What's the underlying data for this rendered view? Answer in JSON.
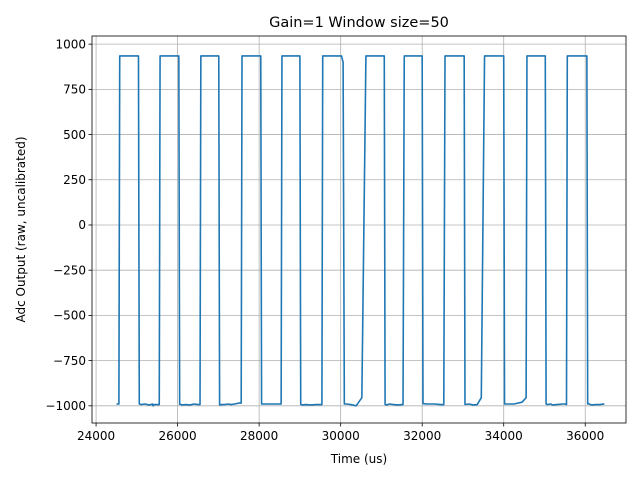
{
  "chart_data": {
    "type": "line",
    "title": "Gain=1 Window size=50",
    "xlabel": "Time (us)",
    "ylabel": "Adc Output (raw, uncalibrated)",
    "xlim": [
      23900,
      37000
    ],
    "ylim": [
      -1095,
      1045
    ],
    "xticks": [
      24000,
      26000,
      28000,
      30000,
      32000,
      34000,
      36000
    ],
    "yticks": [
      -1000,
      -750,
      -500,
      -250,
      0,
      250,
      500,
      750,
      1000
    ],
    "xtick_labels": [
      "24000",
      "26000",
      "28000",
      "30000",
      "32000",
      "34000",
      "36000"
    ],
    "ytick_labels": [
      "−1000",
      "−750",
      "−500",
      "−250",
      "0",
      "250",
      "500",
      "750",
      "1000"
    ],
    "grid": true,
    "legend": "none",
    "colors": {
      "series": "#1f77b4"
    },
    "series": [
      {
        "name": "",
        "x": [
          24520,
          24560,
          24580,
          24620,
          25040,
          25060,
          25100,
          25200,
          25300,
          25350,
          25380,
          25400,
          25420,
          25550,
          25570,
          25590,
          25610,
          26030,
          26050,
          26080,
          26100,
          26200,
          26300,
          26350,
          26400,
          26500,
          26550,
          26570,
          26610,
          27010,
          27030,
          27070,
          27150,
          27250,
          27300,
          27400,
          27500,
          27560,
          27580,
          27620,
          28040,
          28060,
          28100,
          28200,
          28300,
          28400,
          28500,
          28540,
          28560,
          28600,
          29000,
          29020,
          29060,
          29150,
          29250,
          29400,
          29500,
          29540,
          29560,
          29600,
          30000,
          30020,
          30060,
          30090,
          30150,
          30250,
          30380,
          30520,
          30620,
          30650,
          30680,
          30710,
          31070,
          31090,
          31120,
          31200,
          31300,
          31400,
          31500,
          31530,
          31560,
          31600,
          32000,
          32020,
          32050,
          32100,
          32200,
          32300,
          32450,
          32500,
          32530,
          32560,
          32600,
          33030,
          33050,
          33080,
          33150,
          33250,
          33350,
          33450,
          33530,
          33560,
          33600,
          34000,
          34020,
          34050,
          34150,
          34250,
          34450,
          34550,
          34570,
          34600,
          34620,
          35020,
          35040,
          35070,
          35150,
          35200,
          35300,
          35450,
          35510,
          35540,
          35560,
          35600,
          36040,
          36060,
          36080,
          36150,
          36250,
          36350,
          36450
        ],
        "y": [
          -990,
          -990,
          935,
          935,
          935,
          -990,
          -993,
          -990,
          -995,
          -993,
          -990,
          -1000,
          -993,
          -993,
          935,
          935,
          935,
          935,
          -992,
          -992,
          -995,
          -993,
          -995,
          -993,
          -990,
          -993,
          -993,
          935,
          935,
          935,
          -995,
          -993,
          -993,
          -990,
          -993,
          -990,
          -985,
          -985,
          935,
          935,
          935,
          -990,
          -990,
          -990,
          -990,
          -990,
          -990,
          -990,
          935,
          935,
          935,
          -992,
          -995,
          -993,
          -995,
          -993,
          -993,
          -993,
          935,
          935,
          935,
          935,
          900,
          -990,
          -990,
          -993,
          -1000,
          -955,
          935,
          935,
          935,
          935,
          935,
          -992,
          -995,
          -990,
          -993,
          -995,
          -993,
          -993,
          935,
          935,
          935,
          -988,
          -988,
          -990,
          -990,
          -990,
          -993,
          -993,
          -993,
          935,
          935,
          935,
          -992,
          -992,
          -990,
          -995,
          -993,
          -955,
          935,
          935,
          935,
          935,
          -990,
          -990,
          -990,
          -990,
          -980,
          -955,
          935,
          935,
          935,
          935,
          -990,
          -993,
          -990,
          -995,
          -993,
          -990,
          -990,
          -993,
          935,
          935,
          935,
          -990,
          -988,
          -995,
          -993,
          -993,
          -990
        ]
      }
    ]
  }
}
